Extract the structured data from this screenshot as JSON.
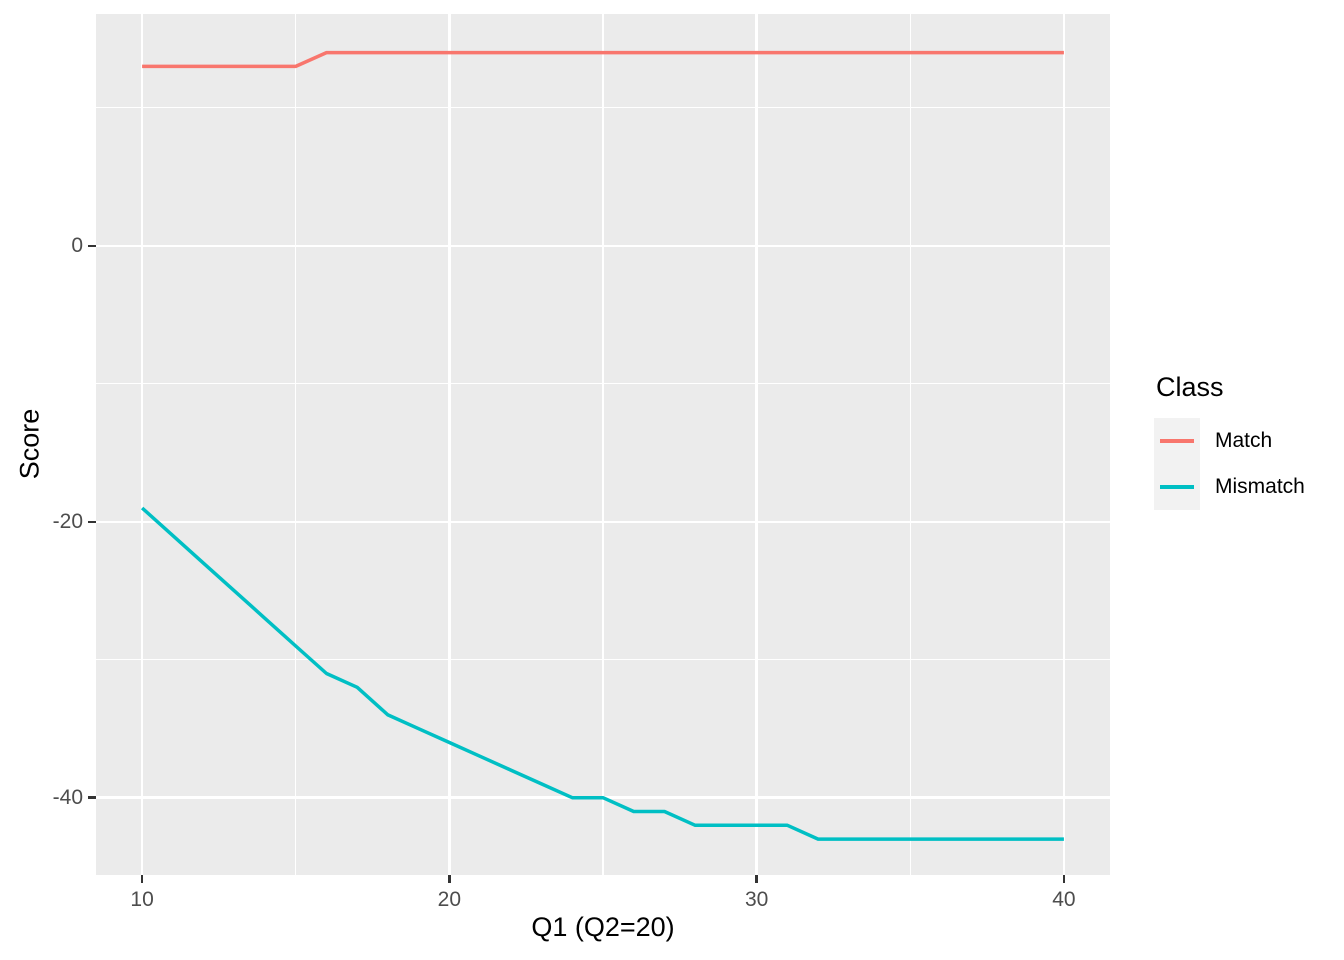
{
  "chart_data": {
    "type": "line",
    "title": "",
    "xlabel": "Q1 (Q2=20)",
    "ylabel": "Score",
    "legend_title": "Class",
    "legend_position": "right",
    "grid": true,
    "panel_bg": "#EBEBEB",
    "grid_color": "#FFFFFF",
    "xlim": [
      8.5,
      41.5
    ],
    "ylim": [
      -45.6,
      16.8
    ],
    "x_major_ticks": [
      10,
      20,
      30,
      40
    ],
    "x_minor_ticks": [
      15,
      25,
      35
    ],
    "y_major_ticks": [
      0,
      -20,
      -40
    ],
    "y_minor_ticks": [
      10,
      -10,
      -30
    ],
    "x_tick_labels": [
      "10",
      "20",
      "30",
      "40"
    ],
    "y_tick_labels": [
      "0",
      "-20",
      "-40"
    ],
    "x": [
      10,
      11,
      12,
      13,
      14,
      15,
      16,
      17,
      18,
      19,
      20,
      21,
      22,
      23,
      24,
      25,
      26,
      27,
      28,
      29,
      30,
      31,
      32,
      33,
      34,
      35,
      36,
      37,
      38,
      39,
      40
    ],
    "series": [
      {
        "name": "Match",
        "color": "#F8766D",
        "values": [
          13,
          13,
          13,
          13,
          13,
          13,
          14,
          14,
          14,
          14,
          14,
          14,
          14,
          14,
          14,
          14,
          14,
          14,
          14,
          14,
          14,
          14,
          14,
          14,
          14,
          14,
          14,
          14,
          14,
          14,
          14
        ]
      },
      {
        "name": "Mismatch",
        "color": "#00BFC4",
        "values": [
          -19,
          -21,
          -23,
          -25,
          -27,
          -29,
          -31,
          -32,
          -34,
          -35,
          -36,
          -37,
          -38,
          -39,
          -40,
          -40,
          -41,
          -41,
          -42,
          -42,
          -42,
          -42,
          -43,
          -43,
          -43,
          -43,
          -43,
          -43,
          -43,
          -43,
          -43
        ]
      }
    ]
  }
}
